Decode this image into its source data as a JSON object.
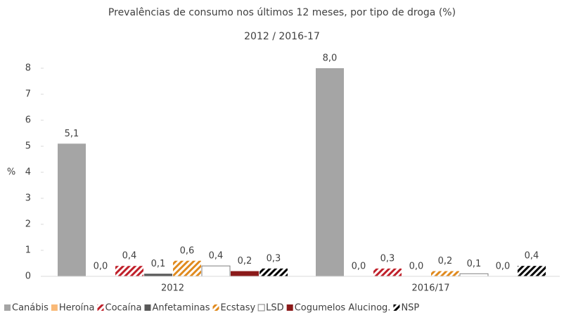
{
  "chart_data": {
    "type": "bar",
    "title": "Prevalências de consumo nos últimos 12 meses, por tipo de droga (%)",
    "subtitle": "2012 / 2016-17",
    "ylabel": "%",
    "categories": [
      "2012",
      "2016/17"
    ],
    "ylim": [
      0,
      8
    ],
    "yticks": [
      0,
      1,
      2,
      3,
      4,
      5,
      6,
      7,
      8
    ],
    "legend": "bottom",
    "series": [
      {
        "name": "Canábis",
        "color": "#a5a5a5",
        "values": [
          5.1,
          8.0
        ],
        "value_labels": [
          "5,1",
          "8,0"
        ]
      },
      {
        "name": "Heroína",
        "color": "#f9b977",
        "values": [
          0.0,
          0.0
        ],
        "value_labels": [
          "0,0",
          "0,0"
        ]
      },
      {
        "name": "Cocaína",
        "color": "#c0202a",
        "hatch": true,
        "values": [
          0.4,
          0.3
        ],
        "value_labels": [
          "0,4",
          "0,3"
        ]
      },
      {
        "name": "Anfetaminas",
        "color": "#595959",
        "values": [
          0.1,
          0.0
        ],
        "value_labels": [
          "0,1",
          "0,0"
        ]
      },
      {
        "name": "Ecstasy",
        "color": "#e08a1e",
        "hatch": true,
        "values": [
          0.6,
          0.2
        ],
        "value_labels": [
          "0,6",
          "0,2"
        ]
      },
      {
        "name": "LSD",
        "color": "#ffffff",
        "stroke": "#808080",
        "values": [
          0.4,
          0.1
        ],
        "value_labels": [
          "0,4",
          "0,1"
        ]
      },
      {
        "name": "Cogumelos Alucinog.",
        "color": "#8b1a1a",
        "values": [
          0.2,
          0.0
        ],
        "value_labels": [
          "0,2",
          "0,0"
        ]
      },
      {
        "name": "NSP",
        "color": "#000000",
        "hatch": true,
        "values": [
          0.3,
          0.4
        ],
        "value_labels": [
          "0,3",
          "0,4"
        ]
      }
    ]
  }
}
